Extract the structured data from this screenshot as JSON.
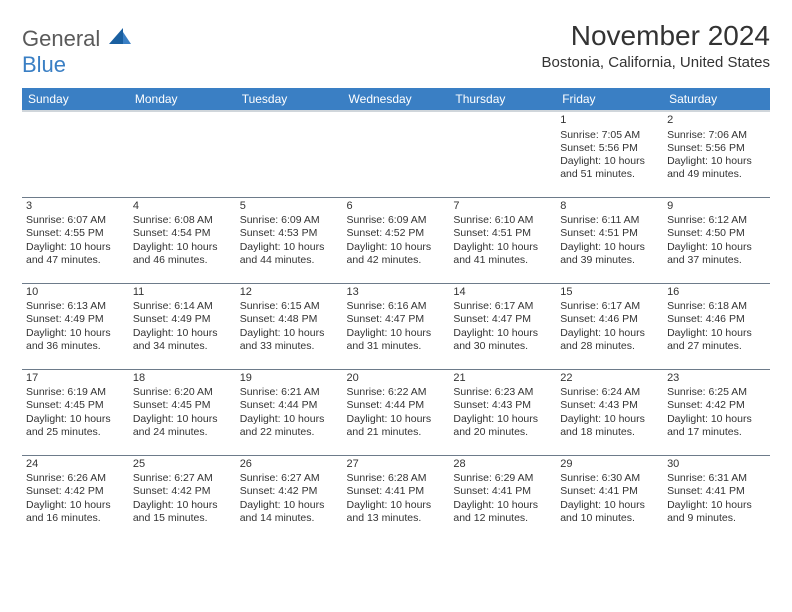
{
  "logo": {
    "word1": "General",
    "word2": "Blue"
  },
  "title": "November 2024",
  "location": "Bostonia, California, United States",
  "colors": {
    "header_bg": "#3a7fc4",
    "header_text": "#ffffff",
    "row_border": "#6d7b8a",
    "logo_blue": "#3a7fc4",
    "logo_gray": "#5a5a5a"
  },
  "weekdays": [
    "Sunday",
    "Monday",
    "Tuesday",
    "Wednesday",
    "Thursday",
    "Friday",
    "Saturday"
  ],
  "weeks": [
    [
      null,
      null,
      null,
      null,
      null,
      {
        "n": "1",
        "sunrise": "Sunrise: 7:05 AM",
        "sunset": "Sunset: 5:56 PM",
        "day": "Daylight: 10 hours and 51 minutes."
      },
      {
        "n": "2",
        "sunrise": "Sunrise: 7:06 AM",
        "sunset": "Sunset: 5:56 PM",
        "day": "Daylight: 10 hours and 49 minutes."
      }
    ],
    [
      {
        "n": "3",
        "sunrise": "Sunrise: 6:07 AM",
        "sunset": "Sunset: 4:55 PM",
        "day": "Daylight: 10 hours and 47 minutes."
      },
      {
        "n": "4",
        "sunrise": "Sunrise: 6:08 AM",
        "sunset": "Sunset: 4:54 PM",
        "day": "Daylight: 10 hours and 46 minutes."
      },
      {
        "n": "5",
        "sunrise": "Sunrise: 6:09 AM",
        "sunset": "Sunset: 4:53 PM",
        "day": "Daylight: 10 hours and 44 minutes."
      },
      {
        "n": "6",
        "sunrise": "Sunrise: 6:09 AM",
        "sunset": "Sunset: 4:52 PM",
        "day": "Daylight: 10 hours and 42 minutes."
      },
      {
        "n": "7",
        "sunrise": "Sunrise: 6:10 AM",
        "sunset": "Sunset: 4:51 PM",
        "day": "Daylight: 10 hours and 41 minutes."
      },
      {
        "n": "8",
        "sunrise": "Sunrise: 6:11 AM",
        "sunset": "Sunset: 4:51 PM",
        "day": "Daylight: 10 hours and 39 minutes."
      },
      {
        "n": "9",
        "sunrise": "Sunrise: 6:12 AM",
        "sunset": "Sunset: 4:50 PM",
        "day": "Daylight: 10 hours and 37 minutes."
      }
    ],
    [
      {
        "n": "10",
        "sunrise": "Sunrise: 6:13 AM",
        "sunset": "Sunset: 4:49 PM",
        "day": "Daylight: 10 hours and 36 minutes."
      },
      {
        "n": "11",
        "sunrise": "Sunrise: 6:14 AM",
        "sunset": "Sunset: 4:49 PM",
        "day": "Daylight: 10 hours and 34 minutes."
      },
      {
        "n": "12",
        "sunrise": "Sunrise: 6:15 AM",
        "sunset": "Sunset: 4:48 PM",
        "day": "Daylight: 10 hours and 33 minutes."
      },
      {
        "n": "13",
        "sunrise": "Sunrise: 6:16 AM",
        "sunset": "Sunset: 4:47 PM",
        "day": "Daylight: 10 hours and 31 minutes."
      },
      {
        "n": "14",
        "sunrise": "Sunrise: 6:17 AM",
        "sunset": "Sunset: 4:47 PM",
        "day": "Daylight: 10 hours and 30 minutes."
      },
      {
        "n": "15",
        "sunrise": "Sunrise: 6:17 AM",
        "sunset": "Sunset: 4:46 PM",
        "day": "Daylight: 10 hours and 28 minutes."
      },
      {
        "n": "16",
        "sunrise": "Sunrise: 6:18 AM",
        "sunset": "Sunset: 4:46 PM",
        "day": "Daylight: 10 hours and 27 minutes."
      }
    ],
    [
      {
        "n": "17",
        "sunrise": "Sunrise: 6:19 AM",
        "sunset": "Sunset: 4:45 PM",
        "day": "Daylight: 10 hours and 25 minutes."
      },
      {
        "n": "18",
        "sunrise": "Sunrise: 6:20 AM",
        "sunset": "Sunset: 4:45 PM",
        "day": "Daylight: 10 hours and 24 minutes."
      },
      {
        "n": "19",
        "sunrise": "Sunrise: 6:21 AM",
        "sunset": "Sunset: 4:44 PM",
        "day": "Daylight: 10 hours and 22 minutes."
      },
      {
        "n": "20",
        "sunrise": "Sunrise: 6:22 AM",
        "sunset": "Sunset: 4:44 PM",
        "day": "Daylight: 10 hours and 21 minutes."
      },
      {
        "n": "21",
        "sunrise": "Sunrise: 6:23 AM",
        "sunset": "Sunset: 4:43 PM",
        "day": "Daylight: 10 hours and 20 minutes."
      },
      {
        "n": "22",
        "sunrise": "Sunrise: 6:24 AM",
        "sunset": "Sunset: 4:43 PM",
        "day": "Daylight: 10 hours and 18 minutes."
      },
      {
        "n": "23",
        "sunrise": "Sunrise: 6:25 AM",
        "sunset": "Sunset: 4:42 PM",
        "day": "Daylight: 10 hours and 17 minutes."
      }
    ],
    [
      {
        "n": "24",
        "sunrise": "Sunrise: 6:26 AM",
        "sunset": "Sunset: 4:42 PM",
        "day": "Daylight: 10 hours and 16 minutes."
      },
      {
        "n": "25",
        "sunrise": "Sunrise: 6:27 AM",
        "sunset": "Sunset: 4:42 PM",
        "day": "Daylight: 10 hours and 15 minutes."
      },
      {
        "n": "26",
        "sunrise": "Sunrise: 6:27 AM",
        "sunset": "Sunset: 4:42 PM",
        "day": "Daylight: 10 hours and 14 minutes."
      },
      {
        "n": "27",
        "sunrise": "Sunrise: 6:28 AM",
        "sunset": "Sunset: 4:41 PM",
        "day": "Daylight: 10 hours and 13 minutes."
      },
      {
        "n": "28",
        "sunrise": "Sunrise: 6:29 AM",
        "sunset": "Sunset: 4:41 PM",
        "day": "Daylight: 10 hours and 12 minutes."
      },
      {
        "n": "29",
        "sunrise": "Sunrise: 6:30 AM",
        "sunset": "Sunset: 4:41 PM",
        "day": "Daylight: 10 hours and 10 minutes."
      },
      {
        "n": "30",
        "sunrise": "Sunrise: 6:31 AM",
        "sunset": "Sunset: 4:41 PM",
        "day": "Daylight: 10 hours and 9 minutes."
      }
    ]
  ]
}
